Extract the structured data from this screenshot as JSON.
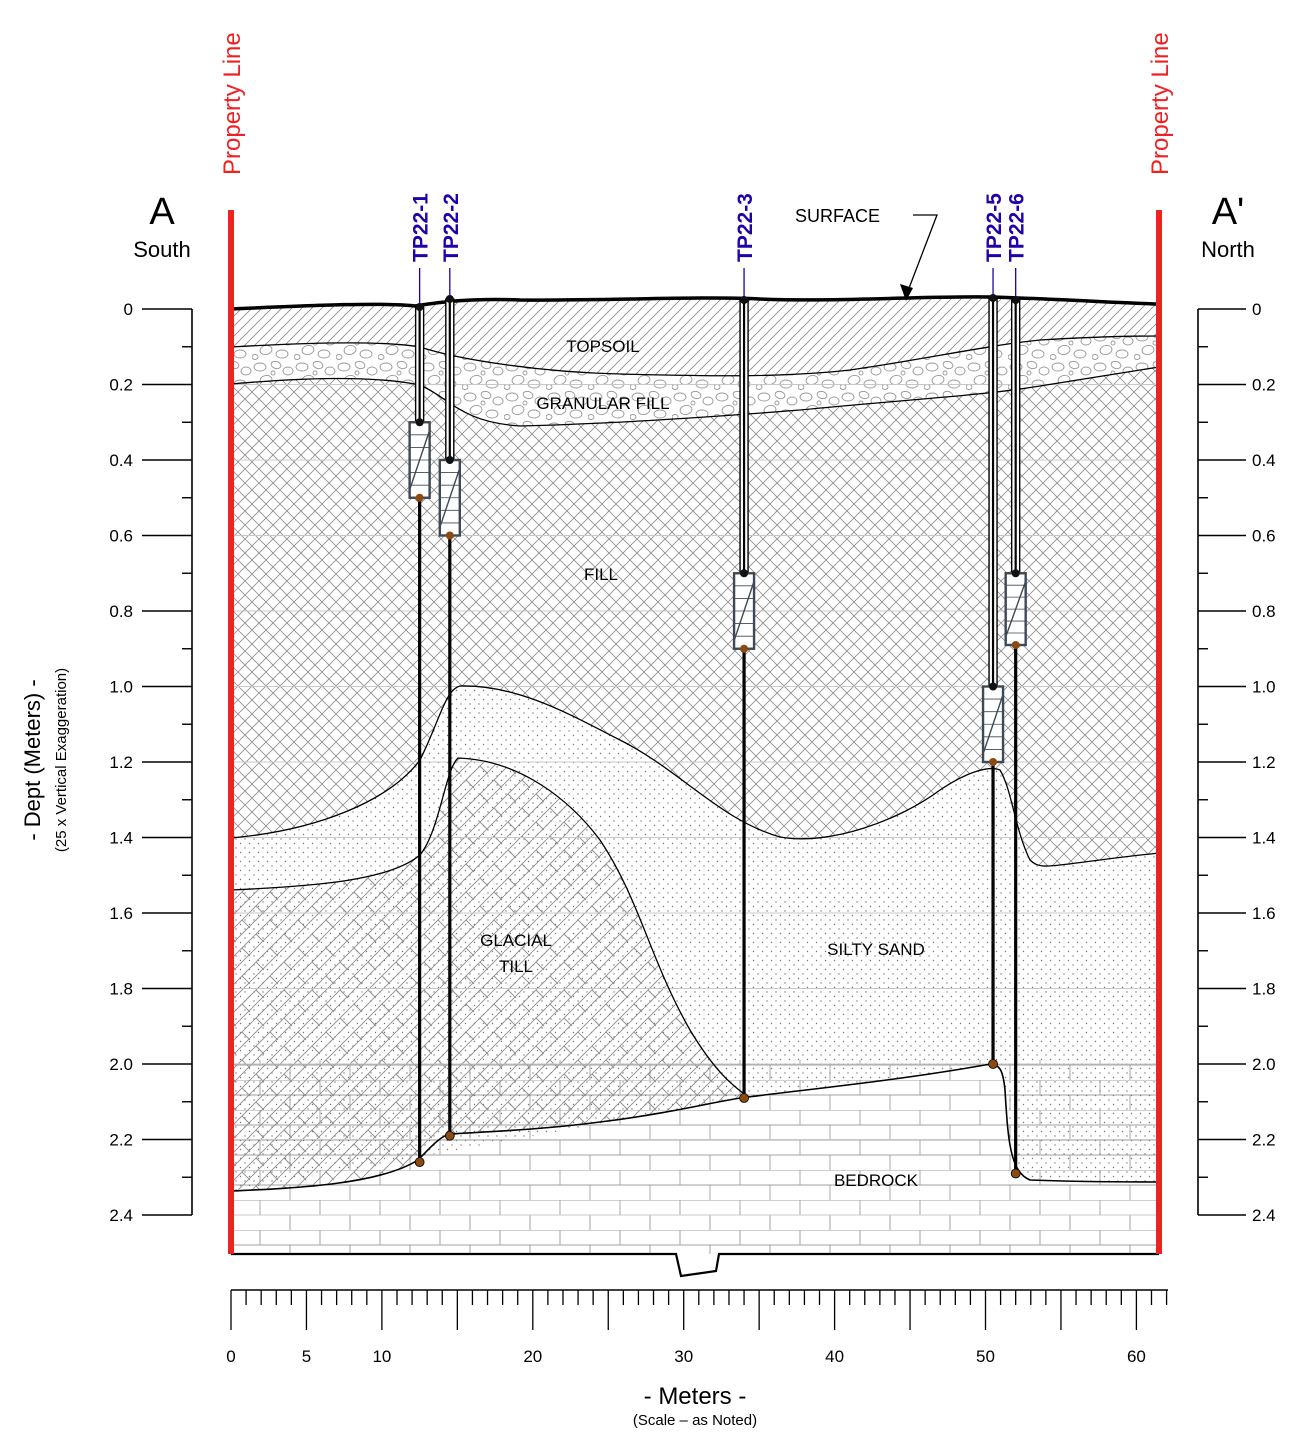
{
  "section": {
    "start_letter": "A",
    "start_direction": "South",
    "end_letter": "A'",
    "end_direction": "North",
    "property_line_left": "Property Line",
    "property_line_right": "Property Line",
    "surface_label": "SURFACE"
  },
  "axes": {
    "y_title": "- Dept (Meters) -",
    "y_subtitle": "(25 x Vertical Exaggeration)",
    "y_ticks": [
      "0",
      "0.2",
      "0.4",
      "0.6",
      "0.8",
      "1.0",
      "1.2",
      "1.4",
      "1.6",
      "1.8",
      "2.0",
      "2.2",
      "2.4"
    ],
    "x_title": "- Meters -",
    "x_subtitle": "(Scale – as Noted)",
    "x_ticks": [
      "0",
      "5",
      "10",
      "20",
      "30",
      "40",
      "50",
      "60"
    ]
  },
  "layers": [
    {
      "name": "TOPSOIL"
    },
    {
      "name": "GRANULAR FILL"
    },
    {
      "name": "FILL"
    },
    {
      "name": "GLACIAL",
      "name_line2": "TILL"
    },
    {
      "name": "SILTY SAND"
    },
    {
      "name": "BEDROCK"
    }
  ],
  "test_pits": [
    {
      "id": "TP22-1",
      "x_m": 12.5,
      "screen_top_m": 0.3,
      "screen_bottom_m": 0.5,
      "bottom_m": 2.26
    },
    {
      "id": "TP22-2",
      "x_m": 14.5,
      "screen_top_m": 0.4,
      "screen_bottom_m": 0.6,
      "bottom_m": 2.19
    },
    {
      "id": "TP22-3",
      "x_m": 34.0,
      "screen_top_m": 0.7,
      "screen_bottom_m": 0.9,
      "bottom_m": 2.09
    },
    {
      "id": "TP22-5",
      "x_m": 50.5,
      "screen_top_m": 1.0,
      "screen_bottom_m": 1.2,
      "bottom_m": 2.0
    },
    {
      "id": "TP22-6",
      "x_m": 52.0,
      "screen_top_m": 0.7,
      "screen_bottom_m": 0.89,
      "bottom_m": 2.29
    }
  ],
  "colors": {
    "property_line": "#ee2222",
    "test_pit_label": "#2200aa",
    "screen": "#3d4a55",
    "pit_bottom_marker": "#8a4a12"
  }
}
